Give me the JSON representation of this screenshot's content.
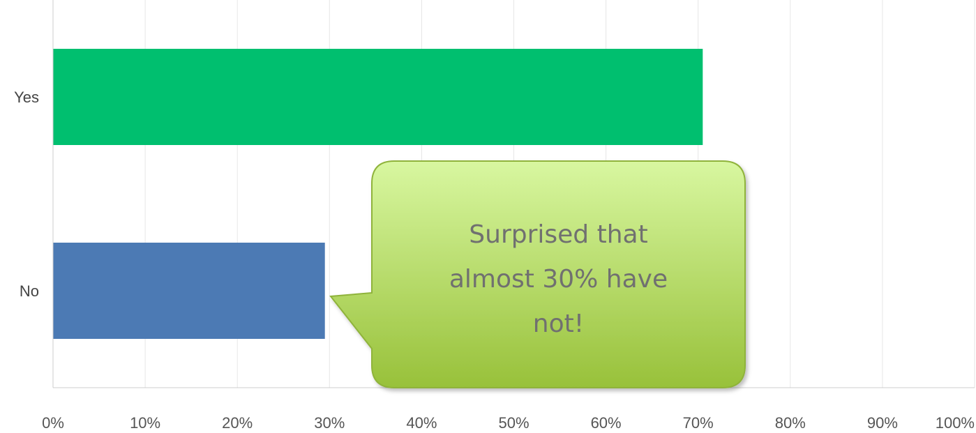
{
  "chart_data": {
    "type": "bar",
    "orientation": "horizontal",
    "categories": [
      "Yes",
      "No"
    ],
    "values": [
      70.5,
      29.5
    ],
    "xlim": [
      0,
      100
    ],
    "x_ticks": [
      "0%",
      "10%",
      "20%",
      "30%",
      "40%",
      "50%",
      "60%",
      "70%",
      "80%",
      "90%",
      "100%"
    ],
    "grid": true,
    "colors": [
      "#00bf6f",
      "#4c7ab4"
    ],
    "annotation": {
      "lines": [
        "Surprised that",
        "almost 30% have",
        "not!"
      ],
      "fill_top": "#d8f7a0",
      "fill_bottom": "#98c13a",
      "stroke": "#8fb33a"
    }
  }
}
